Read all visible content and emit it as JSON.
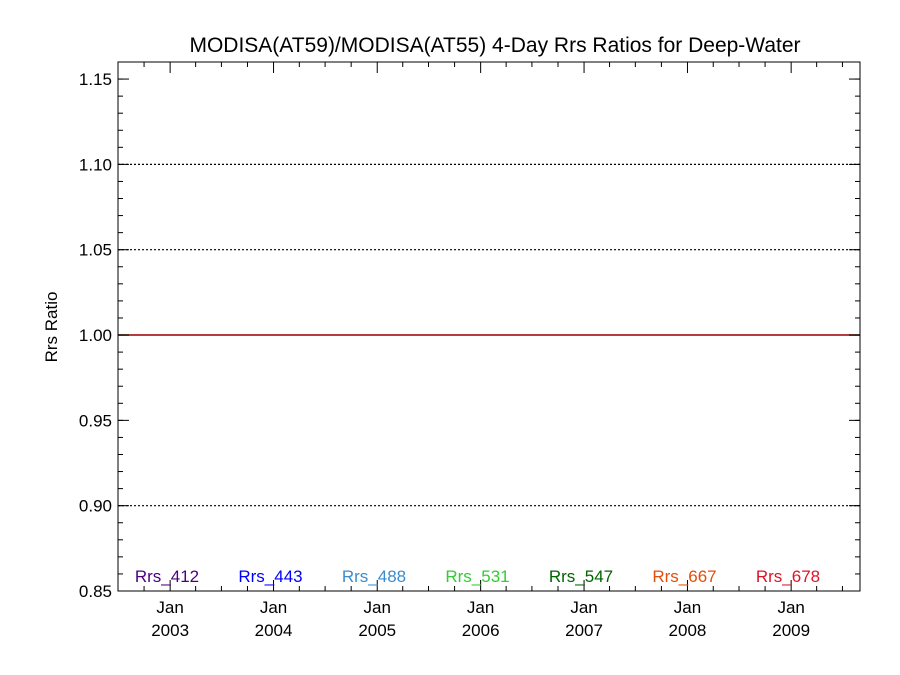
{
  "chart_data": {
    "type": "line",
    "title": "MODISA(AT59)/MODISA(AT55) 4-Day Rrs Ratios for Deep-Water",
    "ylabel": "Rrs Ratio",
    "xlabel": "",
    "ylim": [
      0.85,
      1.16
    ],
    "xlim": [
      "2002-07-01",
      "2009-09-01"
    ],
    "y_major_ticks": [
      0.85,
      0.9,
      0.95,
      1.0,
      1.05,
      1.1,
      1.15
    ],
    "y_tick_labels": [
      "0.85",
      "0.90",
      "0.95",
      "1.00",
      "1.05",
      "1.10",
      "1.15"
    ],
    "y_minor_step": 0.01,
    "y_gridlines": [
      0.9,
      1.05,
      1.1
    ],
    "x_ticks": [
      {
        "date": "2003-01-01",
        "month": "Jan",
        "year": "2003"
      },
      {
        "date": "2004-01-01",
        "month": "Jan",
        "year": "2004"
      },
      {
        "date": "2005-01-01",
        "month": "Jan",
        "year": "2005"
      },
      {
        "date": "2006-01-01",
        "month": "Jan",
        "year": "2006"
      },
      {
        "date": "2007-01-01",
        "month": "Jan",
        "year": "2007"
      },
      {
        "date": "2008-01-01",
        "month": "Jan",
        "year": "2008"
      },
      {
        "date": "2009-01-01",
        "month": "Jan",
        "year": "2009"
      }
    ],
    "reference_line": {
      "y": 1.0,
      "color": "#000000"
    },
    "series": [
      {
        "name": "Rrs_412",
        "color": "#4b0082",
        "x": [
          "2002-07-01",
          "2009-09-01"
        ],
        "values": [
          1.0,
          1.0
        ]
      },
      {
        "name": "Rrs_443",
        "color": "#0000ff",
        "x": [
          "2002-07-01",
          "2009-09-01"
        ],
        "values": [
          1.0,
          1.0
        ]
      },
      {
        "name": "Rrs_488",
        "color": "#3c8ccd",
        "x": [
          "2002-07-01",
          "2009-09-01"
        ],
        "values": [
          1.0,
          1.0
        ]
      },
      {
        "name": "Rrs_531",
        "color": "#32cd32",
        "x": [
          "2002-07-01",
          "2009-09-01"
        ],
        "values": [
          1.0,
          1.0
        ]
      },
      {
        "name": "Rrs_547",
        "color": "#006400",
        "x": [
          "2002-07-01",
          "2009-09-01"
        ],
        "values": [
          1.0,
          1.0
        ]
      },
      {
        "name": "Rrs_667",
        "color": "#e0500a",
        "x": [
          "2002-07-01",
          "2009-09-01"
        ],
        "values": [
          1.0,
          1.0
        ]
      },
      {
        "name": "Rrs_678",
        "color": "#dc1428",
        "x": [
          "2002-07-01",
          "2009-09-01"
        ],
        "values": [
          1.0,
          1.0
        ]
      }
    ],
    "legend_placement": "bottom inside plot"
  }
}
